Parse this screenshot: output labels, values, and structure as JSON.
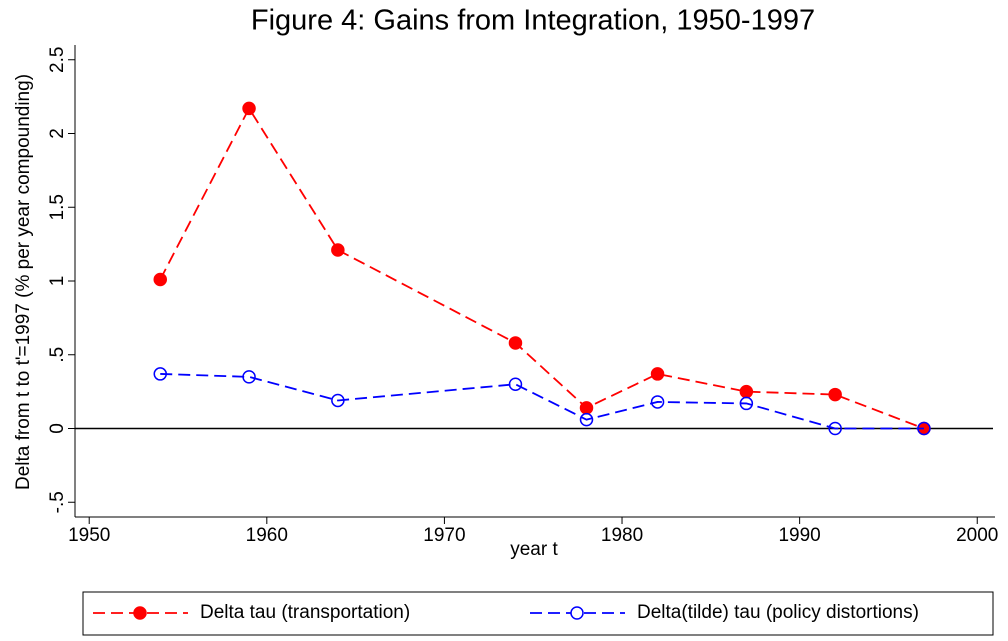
{
  "chart_data": {
    "type": "line",
    "title": "Figure 4: Gains from Integration, 1950-1997",
    "xlabel": "year t",
    "ylabel": "Delta from t to t'=1997 (% per year compounding)",
    "x": [
      1954,
      1959,
      1964,
      1974,
      1978,
      1982,
      1987,
      1992,
      1997
    ],
    "series": [
      {
        "name": "Delta tau (transportation)",
        "color": "#ff0000",
        "marker": "filled",
        "values": [
          1.01,
          2.17,
          1.21,
          0.58,
          0.14,
          0.37,
          0.25,
          0.23,
          0.0
        ]
      },
      {
        "name": "Delta(tilde) tau (policy distortions)",
        "color": "#0000ff",
        "marker": "hollow",
        "values": [
          0.37,
          0.35,
          0.19,
          0.3,
          0.06,
          0.18,
          0.17,
          0.0,
          0.0
        ]
      }
    ],
    "xlim": [
      1949.2,
      2001
    ],
    "xticks": [
      1950,
      1960,
      1970,
      1980,
      1990,
      2000
    ],
    "ylim": [
      -0.6,
      2.6
    ],
    "yticks": [
      {
        "value": -0.5,
        "label": "-.5"
      },
      0,
      {
        "value": 0.5,
        "label": ".5"
      },
      1,
      {
        "value": 1.5,
        "label": "1.5"
      },
      2,
      {
        "value": 2.5,
        "label": "2.5"
      }
    ],
    "reference_line": 0,
    "legend": "bottom"
  }
}
